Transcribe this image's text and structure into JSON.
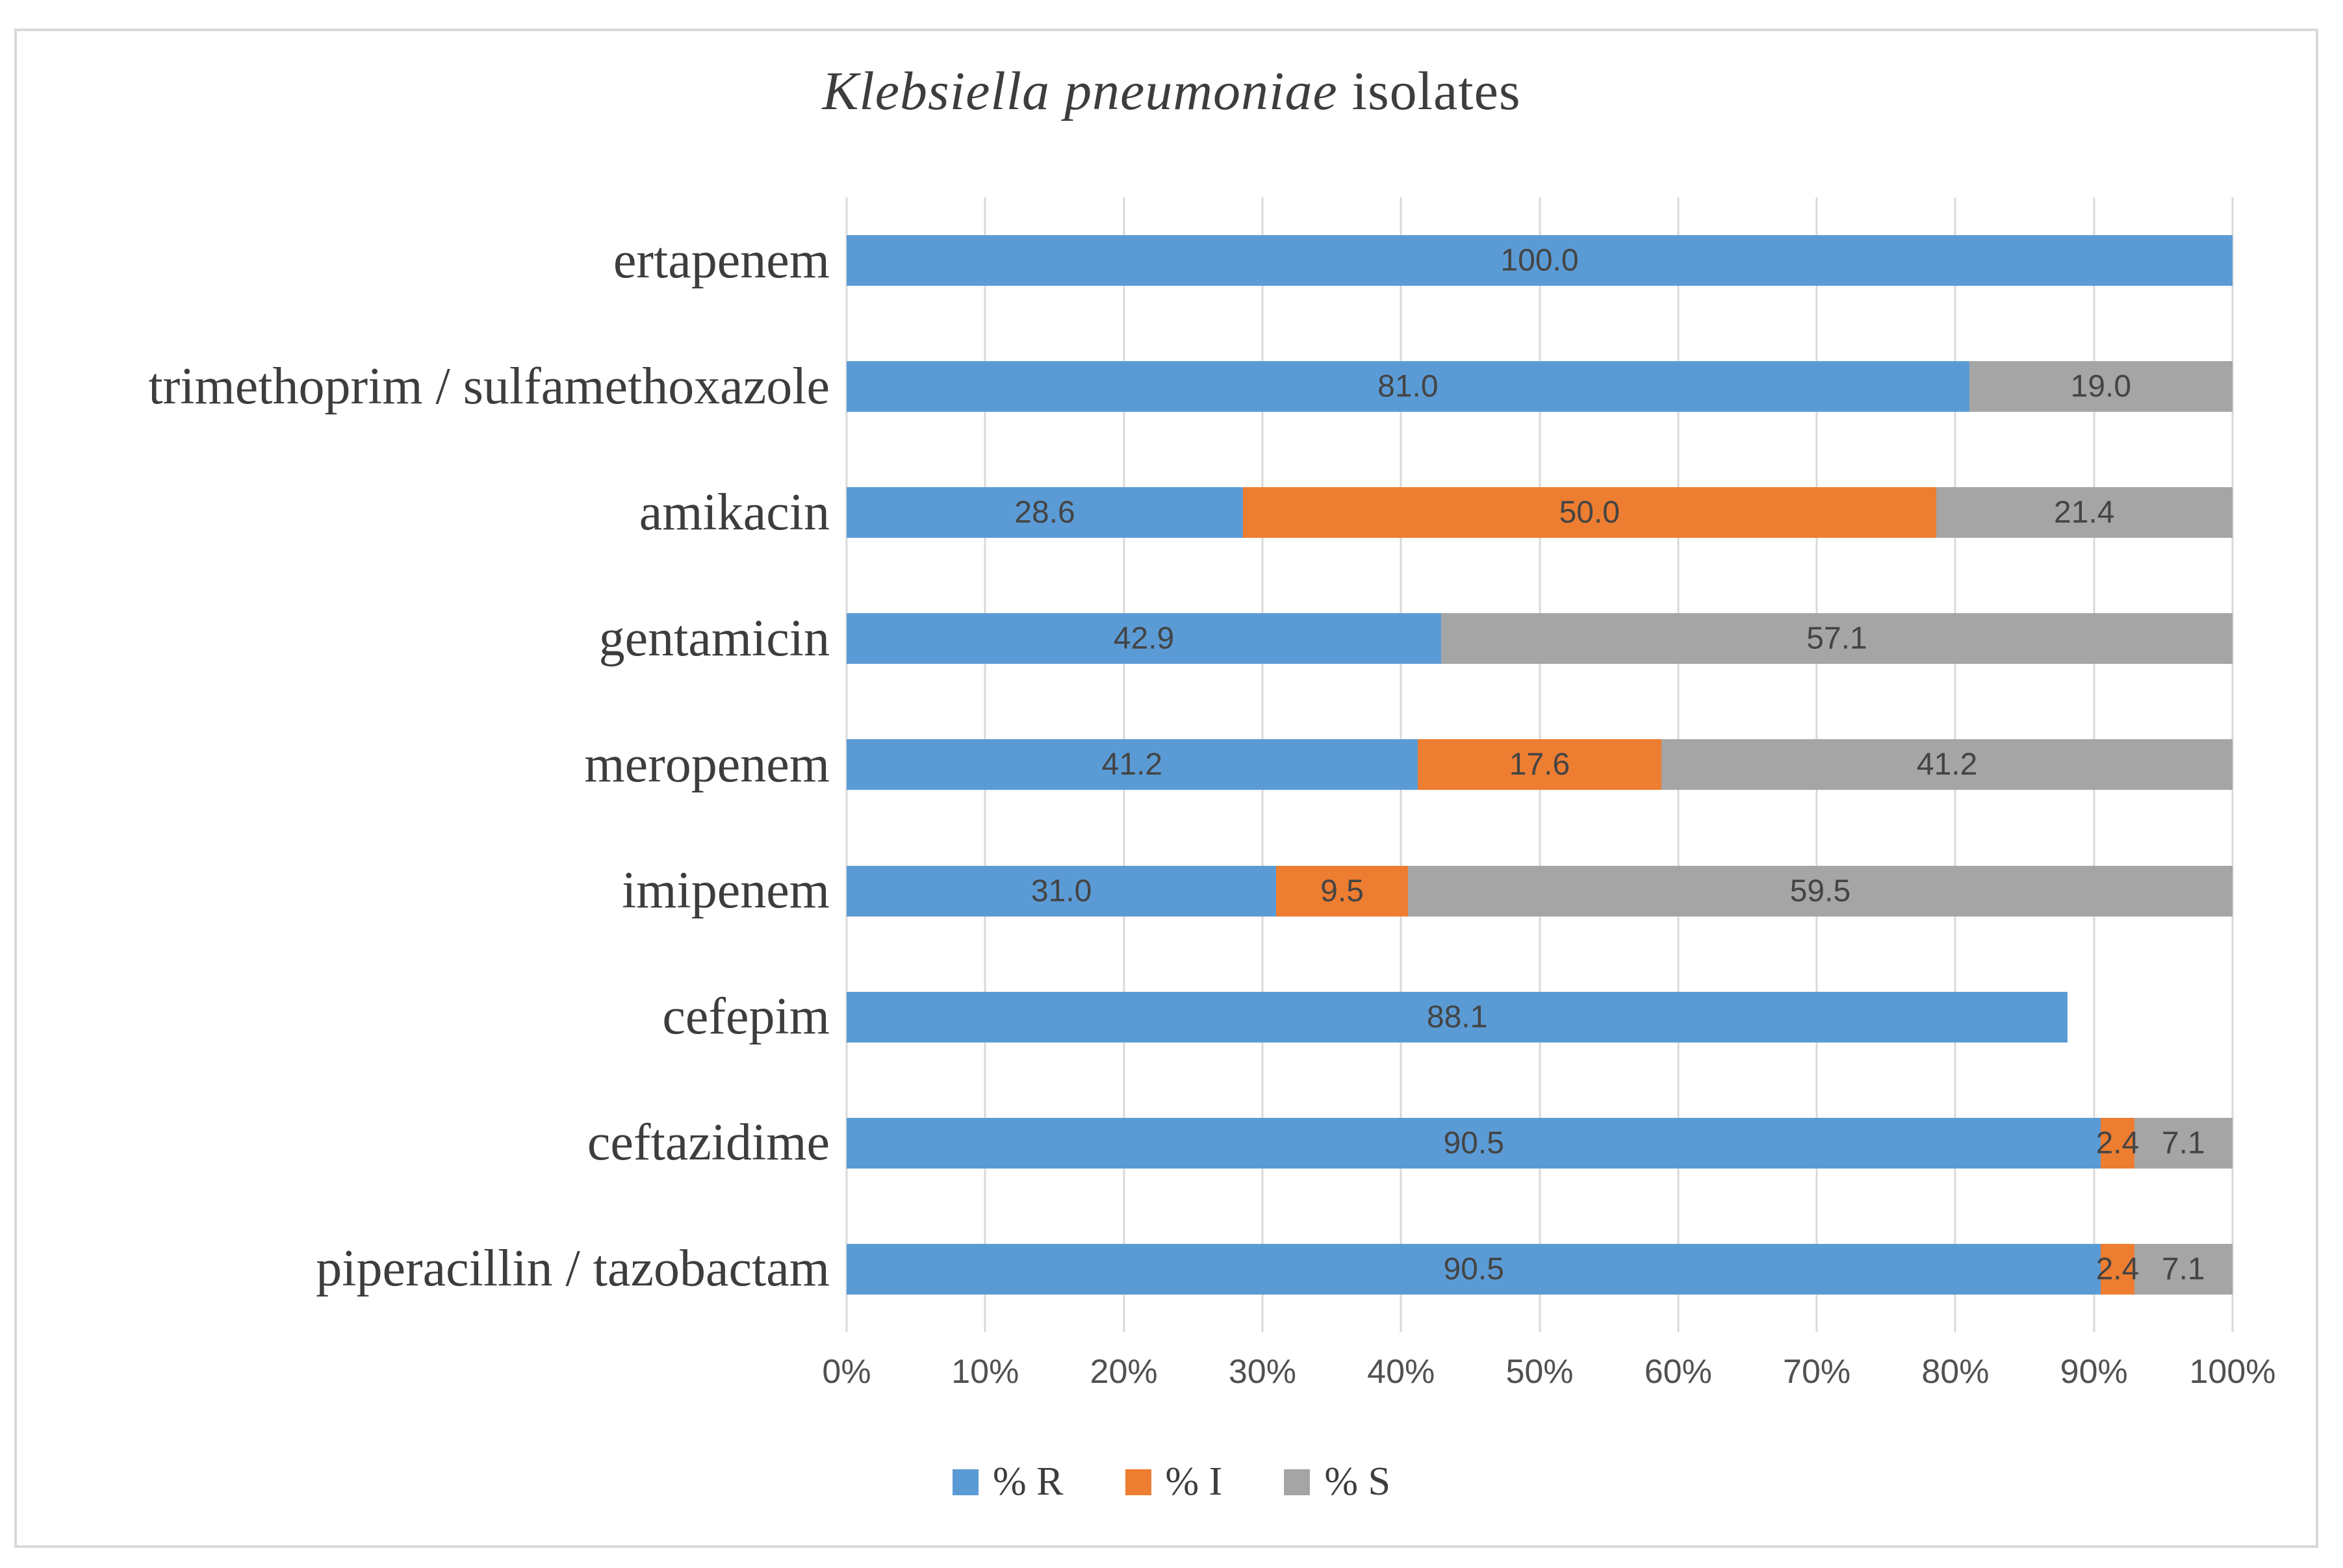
{
  "title": {
    "species": "Klebsiella pneumoniae",
    "suffix": " isolates"
  },
  "chart_data": {
    "type": "bar",
    "orientation": "horizontal",
    "stacked": true,
    "title": "Klebsiella pneumoniae isolates",
    "categories": [
      "ertapenem",
      "trimethoprim / sulfamethoxazole",
      "amikacin",
      "gentamicin",
      "meropenem",
      "imipenem",
      "cefepim",
      "ceftazidime",
      "piperacillin / tazobactam"
    ],
    "series": [
      {
        "name": "% R",
        "color": "#5B9BD5",
        "values": [
          100.0,
          81.0,
          28.6,
          42.9,
          41.2,
          31.0,
          88.1,
          90.5,
          90.5
        ]
      },
      {
        "name": "% I",
        "color": "#ED7D31",
        "values": [
          0,
          0,
          50.0,
          0,
          17.6,
          9.5,
          0,
          2.4,
          2.4
        ]
      },
      {
        "name": "% S",
        "color": "#A5A5A5",
        "values": [
          0,
          19.0,
          21.4,
          57.1,
          41.2,
          59.5,
          0,
          7.1,
          7.1
        ]
      }
    ],
    "x_axis": {
      "min": 0,
      "max": 100,
      "tick_labels": [
        "0%",
        "10%",
        "20%",
        "30%",
        "40%",
        "50%",
        "60%",
        "70%",
        "80%",
        "90%",
        "100%"
      ],
      "grid": true
    },
    "legend": {
      "position": "bottom",
      "items": [
        {
          "label": "% R",
          "color": "#5B9BD5"
        },
        {
          "label": "% I",
          "color": "#ED7D31"
        },
        {
          "label": "% S",
          "color": "#A5A5A5"
        }
      ]
    },
    "data_label_decimals": 1,
    "grid_color": "#D9D9D9",
    "label_color": "#444444"
  }
}
